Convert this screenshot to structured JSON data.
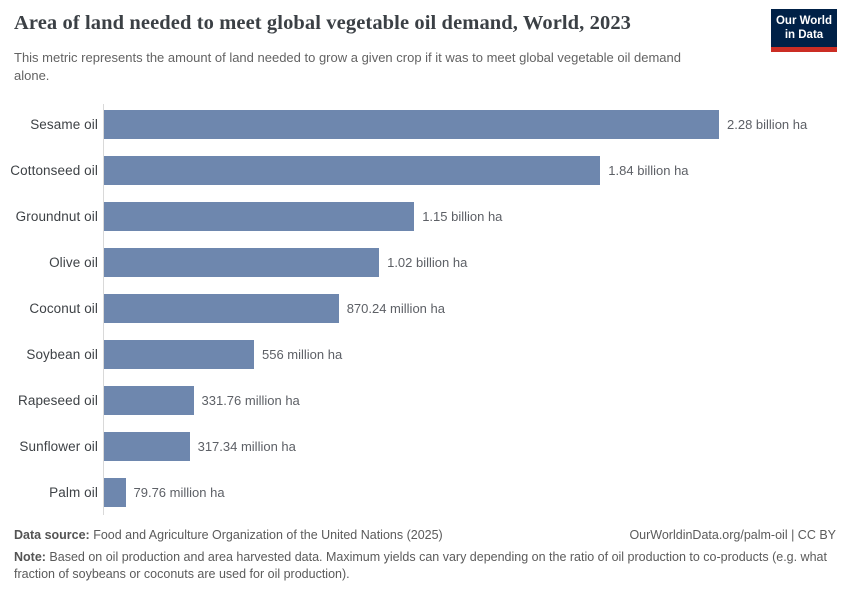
{
  "header": {
    "title": "Area of land needed to meet global vegetable oil demand, World, 2023",
    "subtitle": "This metric represents the amount of land needed to grow a given crop if it was to meet global vegetable oil demand alone.",
    "logo": {
      "line1": "Our World",
      "line2": "in Data",
      "bg_color": "#002147",
      "accent_color": "#cb2d24"
    }
  },
  "chart_data": {
    "type": "bar",
    "orientation": "horizontal",
    "title": "Area of land needed to meet global vegetable oil demand, World, 2023",
    "xlabel": "",
    "ylabel": "",
    "unit": "ha",
    "grid": false,
    "legend": "none",
    "xlim_million_ha": [
      0,
      2280
    ],
    "bar_color": "#6e87ae",
    "categories": [
      "Sesame oil",
      "Cottonseed oil",
      "Groundnut oil",
      "Olive oil",
      "Coconut oil",
      "Soybean oil",
      "Rapeseed oil",
      "Sunflower oil",
      "Palm oil"
    ],
    "values_million_ha": [
      2280,
      1840,
      1150,
      1020,
      870.24,
      556,
      331.76,
      317.34,
      79.76
    ],
    "value_labels": [
      "2.28 billion ha",
      "1.84 billion ha",
      "1.15 billion ha",
      "1.02 billion ha",
      "870.24 million ha",
      "556 million ha",
      "331.76 million ha",
      "317.34 million ha",
      "79.76 million ha"
    ]
  },
  "footer": {
    "data_source_label": "Data source:",
    "data_source_text": " Food and Agriculture Organization of the United Nations (2025)",
    "link_text": "OurWorldinData.org/palm-oil | CC BY",
    "note_label": "Note:",
    "note_text": " Based on oil production and area harvested data. Maximum yields can vary depending on the ratio of oil production to co-products (e.g. what fraction of soybeans or coconuts are used for oil production)."
  }
}
